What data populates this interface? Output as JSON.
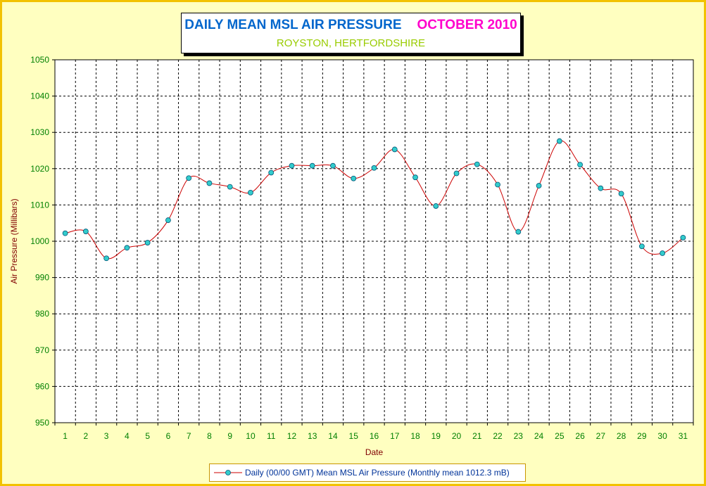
{
  "colors": {
    "background": "#ffffc0",
    "border": "#f2c200",
    "line": "#cc0000",
    "marker_fill": "#33cccc",
    "marker_stroke": "#005577",
    "grid": "#000000",
    "title_main": "#0066cc",
    "title_month": "#ff00cc",
    "subtitle": "#99cc00"
  },
  "header": {
    "title": "DAILY MEAN MSL AIR PRESSURE",
    "month": "OCTOBER 2010",
    "subtitle": "ROYSTON, HERTFORDSHIRE"
  },
  "legend": {
    "label": "Daily (00/00 GMT) Mean MSL Air Pressure (Monthly mean 1012.3 mB)"
  },
  "chart_data": {
    "type": "line",
    "title": "DAILY MEAN MSL AIR PRESSURE",
    "subtitle": "ROYSTON, HERTFORDSHIRE",
    "xlabel": "Date",
    "ylabel": "Air Pressure (Millibars)",
    "ylim": [
      950,
      1050
    ],
    "ystep": 10,
    "yticks": [
      "950",
      "960",
      "970",
      "980",
      "990",
      "1000",
      "1010",
      "1020",
      "1030",
      "1040",
      "1050"
    ],
    "grid": true,
    "legend_position": "bottom",
    "categories": [
      "1",
      "2",
      "3",
      "4",
      "5",
      "6",
      "7",
      "8",
      "9",
      "10",
      "11",
      "12",
      "13",
      "14",
      "15",
      "16",
      "17",
      "18",
      "19",
      "20",
      "21",
      "22",
      "23",
      "24",
      "25",
      "26",
      "27",
      "28",
      "29",
      "30",
      "31"
    ],
    "series": [
      {
        "name": "Daily (00/00 GMT) Mean MSL Air Pressure (Monthly mean 1012.3 mB)",
        "values": [
          1002.2,
          1002.7,
          995.3,
          998.2,
          999.6,
          1005.8,
          1017.4,
          1016.0,
          1015.0,
          1013.4,
          1018.9,
          1020.8,
          1020.8,
          1020.8,
          1017.3,
          1020.2,
          1025.3,
          1017.6,
          1009.7,
          1018.7,
          1021.2,
          1015.6,
          1002.6,
          1015.3,
          1027.6,
          1021.1,
          1014.6,
          1013.1,
          998.6,
          996.7,
          1001.0
        ]
      }
    ]
  }
}
